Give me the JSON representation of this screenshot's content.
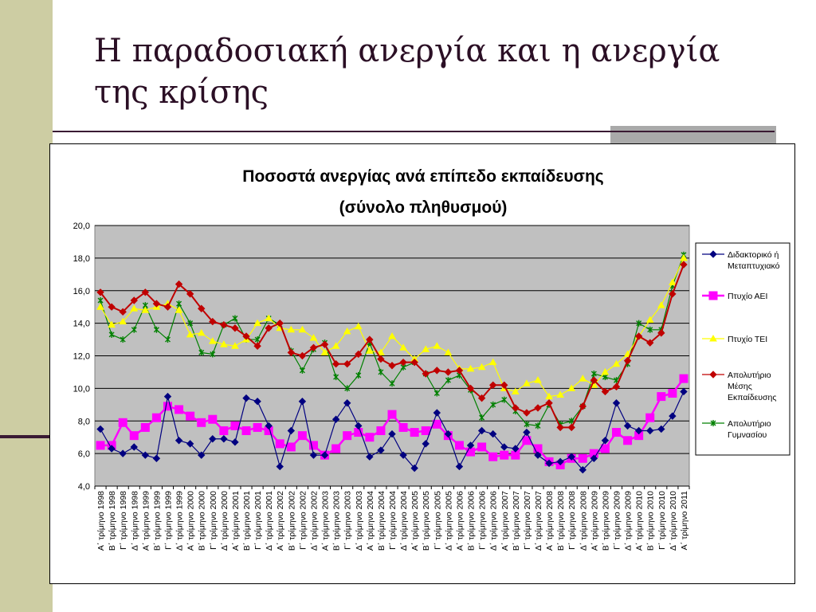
{
  "slide": {
    "title": "Η παραδοσιακή ανεργία και η ανεργία της κρίσης"
  },
  "colors": {
    "side_bar": "#cdcda3",
    "accent_dark": "#3a1a33",
    "plot_bg": "#c0c0c0",
    "series": [
      "#000080",
      "#ff00ff",
      "#ffff00",
      "#c00000",
      "#008000"
    ]
  },
  "chart_data": {
    "type": "line",
    "title": "Ποσοστά ανεργίας ανά επίπεδο εκπαίδευσης",
    "subtitle": "(σύνολο πληθυσμού)",
    "xlabel": "",
    "ylabel": "",
    "ylim": [
      4.0,
      20.0
    ],
    "yticks": [
      "4,0",
      "6,0",
      "8,0",
      "10,0",
      "12,0",
      "14,0",
      "16,0",
      "18,0",
      "20,0"
    ],
    "grid": true,
    "legend_position": "right",
    "categories": [
      "Α΄ τρίμηνο 1998",
      "Β΄ τρίμηνο 1998",
      "Γ΄ τρίμηνο 1998",
      "Δ΄ τρίμηνο 1998",
      "Α΄ τρίμηνο 1999",
      "Β΄ τρίμηνο 1999",
      "Γ΄ τρίμηνο 1999",
      "Δ΄ τρίμηνο 1999",
      "Α΄ τρίμηνο 2000",
      "Β΄ τρίμηνο 2000",
      "Γ΄ τρίμηνο 2000",
      "Δ΄ τρίμηνο 2000",
      "Α΄ τρίμηνο 2001",
      "Β΄ τρίμηνο 2001",
      "Γ΄ τρίμηνο 2001",
      "Δ΄ τρίμηνο 2001",
      "Α΄ τρίμηνο 2002",
      "Β΄ τρίμηνο 2002",
      "Γ΄ τρίμηνο 2002",
      "Δ΄ τρίμηνο 2002",
      "Α΄ τρίμηνο 2003",
      "Β΄ τρίμηνο 2003",
      "Γ΄ τρίμηνο 2003",
      "Δ΄ τρίμηνο 2003",
      "Α΄ τρίμηνο 2004",
      "Β΄ τρίμηνο 2004",
      "Γ΄ τρίμηνο 2004",
      "Δ΄ τρίμηνο 2004",
      "Α΄ τρίμηνο 2005",
      "Β΄ τρίμηνο 2005",
      "Γ΄ τρίμηνο 2005",
      "Δ΄ τρίμηνο 2005",
      "Α΄ τρίμηνο 2006",
      "Β΄ τρίμηνο 2006",
      "Γ΄ τρίμηνο 2006",
      "Δ΄ τρίμηνο 2006",
      "Α΄ τρίμηνο 2007",
      "Β΄ τρίμηνο 2007",
      "Γ΄ τρίμηνο 2007",
      "Δ΄ τρίμηνο 2007",
      "Α΄ τρίμηνο 2008",
      "Β΄ τρίμηνο 2008",
      "Γ΄ τρίμηνο 2008",
      "Δ΄ τρίμηνο 2008",
      "Α΄ τρίμηνο 2009",
      "Β΄ τρίμηνο 2009",
      "Γ΄ τρίμηνο 2009",
      "Δ΄ τρίμηνο 2009",
      "Α΄ τρίμηνο 2010",
      "Β΄ τρίμηνο 2010",
      "Γ΄ τρίμηνο 2010",
      "Δ΄ τρίμηνο 2010",
      "Α΄ τρίμηνο 2011"
    ],
    "series": [
      {
        "name": "Διδακτορικό ή Μεταπτυχιακό",
        "legend_lines": [
          "Διδακτορικό ή",
          "Μεταπτυχιακό"
        ],
        "marker": "diamond",
        "color": "#000080",
        "values": [
          7.5,
          6.3,
          6.0,
          6.4,
          5.9,
          5.7,
          9.5,
          6.8,
          6.6,
          5.9,
          6.9,
          6.9,
          6.7,
          9.4,
          9.2,
          7.7,
          5.2,
          7.4,
          9.2,
          5.9,
          5.9,
          8.1,
          9.1,
          7.7,
          5.8,
          6.2,
          7.2,
          5.9,
          5.1,
          6.6,
          8.5,
          7.2,
          5.2,
          6.5,
          7.4,
          7.2,
          6.4,
          6.3,
          7.3,
          5.9,
          5.4,
          5.5,
          5.8,
          5.0,
          5.7,
          6.8,
          9.1,
          7.7,
          7.4,
          7.4,
          7.5,
          8.3,
          9.8
        ]
      },
      {
        "name": "Πτυχίο ΑΕΙ",
        "legend_lines": [
          "Πτυχίο ΑΕΙ"
        ],
        "marker": "square",
        "color": "#ff00ff",
        "values": [
          6.5,
          6.5,
          7.9,
          7.1,
          7.6,
          8.2,
          8.9,
          8.7,
          8.3,
          7.9,
          8.1,
          7.4,
          7.7,
          7.4,
          7.6,
          7.4,
          6.6,
          6.4,
          7.1,
          6.5,
          5.9,
          6.3,
          7.1,
          7.3,
          7.0,
          7.4,
          8.4,
          7.6,
          7.3,
          7.4,
          7.8,
          7.1,
          6.5,
          6.1,
          6.4,
          5.8,
          5.9,
          5.9,
          6.8,
          6.3,
          5.5,
          5.3,
          5.7,
          5.7,
          6.0,
          6.3,
          7.3,
          6.8,
          7.1,
          8.2,
          9.5,
          9.7,
          10.6
        ]
      },
      {
        "name": "Πτυχίο ΤΕΙ",
        "legend_lines": [
          "Πτυχίο ΤΕΙ"
        ],
        "marker": "triangle",
        "color": "#ffff00",
        "values": [
          15.0,
          13.9,
          14.1,
          14.9,
          14.8,
          15.0,
          15.2,
          14.8,
          13.3,
          13.4,
          12.9,
          12.7,
          12.6,
          13.0,
          14.0,
          14.3,
          13.7,
          13.6,
          13.6,
          13.1,
          12.2,
          12.6,
          13.5,
          13.8,
          12.3,
          12.2,
          13.2,
          12.5,
          11.8,
          12.4,
          12.6,
          12.2,
          11.2,
          11.2,
          11.3,
          11.6,
          10.0,
          9.8,
          10.3,
          10.5,
          9.5,
          9.6,
          10.0,
          10.6,
          10.2,
          11.0,
          11.5,
          12.1,
          13.2,
          14.2,
          15.1,
          16.5,
          18.0
        ]
      },
      {
        "name": "Απολυτήριο Μέσης Εκπαίδευσης",
        "legend_lines": [
          "Απολυτήριο",
          "Μέσης",
          "Εκπαίδευσης"
        ],
        "marker": "diamond",
        "color": "#c00000",
        "values": [
          15.9,
          15.0,
          14.7,
          15.4,
          15.9,
          15.2,
          15.0,
          16.4,
          15.8,
          14.9,
          14.1,
          13.9,
          13.7,
          13.2,
          12.6,
          13.7,
          14.0,
          12.2,
          12.0,
          12.5,
          12.7,
          11.5,
          11.5,
          12.1,
          13.0,
          11.8,
          11.4,
          11.6,
          11.6,
          10.9,
          11.1,
          11.0,
          11.1,
          10.0,
          9.4,
          10.2,
          10.2,
          8.8,
          8.5,
          8.8,
          9.1,
          7.6,
          7.6,
          8.9,
          10.5,
          9.8,
          10.1,
          11.7,
          13.2,
          12.8,
          13.4,
          15.8,
          17.6
        ]
      },
      {
        "name": "Απολυτήριο Γυμνασίου",
        "legend_lines": [
          "Απολυτήριο",
          "Γυμνασίου"
        ],
        "marker": "x",
        "color": "#008000",
        "values": [
          15.4,
          13.3,
          13.0,
          13.6,
          15.1,
          13.6,
          13.0,
          15.2,
          14.0,
          12.2,
          12.1,
          13.9,
          14.3,
          13.0,
          13.0,
          14.3,
          13.9,
          12.3,
          11.1,
          12.4,
          12.8,
          10.7,
          10.0,
          10.8,
          12.8,
          11.0,
          10.3,
          11.3,
          11.6,
          10.9,
          9.7,
          10.5,
          10.8,
          9.9,
          8.2,
          9.0,
          9.3,
          8.6,
          7.8,
          7.7,
          9.0,
          7.8,
          8.0,
          8.9,
          10.9,
          10.7,
          10.5,
          11.5,
          14.0,
          13.6,
          13.6,
          16.3,
          18.2
        ]
      }
    ]
  }
}
